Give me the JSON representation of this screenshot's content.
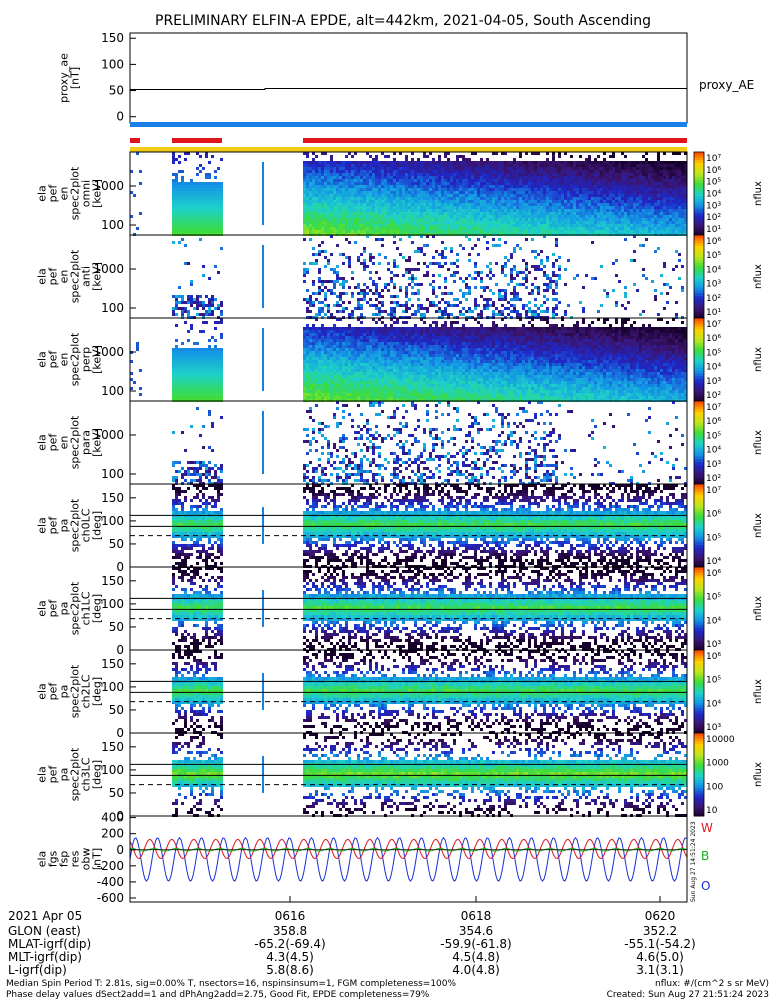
{
  "title": "PRELIMINARY ELFIN-A EPDE, alt=442km, 2021-04-05, South Ascending",
  "colors": {
    "bar_blue": "#1a7fe8",
    "bar_red": "#e0141c",
    "bar_yellow": "#f2cc1a",
    "spec_low": "#4a1a7a",
    "spec_mid": "#1ab8e0",
    "spec_high": "#3ee030",
    "fit_w": "#e0141c",
    "fit_b": "#18b018",
    "fit_o": "#1830d8"
  },
  "panels": {
    "proxy_ae": {
      "ylabel": [
        "proxy_ae",
        "[nT]"
      ],
      "yticks": [
        "150",
        "100",
        "50",
        "0"
      ],
      "ylim": [
        -12,
        160
      ],
      "legend": "proxy_AE",
      "value": 52
    },
    "spectra": [
      {
        "ylabel": [
          "ela",
          "pef",
          "en",
          "spec2plot",
          "omni",
          "[keV]"
        ],
        "yticks": [
          "1000",
          "100"
        ],
        "ctitle": "nflux",
        "cticks": [
          "10⁷",
          "10⁶",
          "10⁵",
          "10⁴",
          "10³",
          "10²",
          "10¹"
        ]
      },
      {
        "ylabel": [
          "ela",
          "pef",
          "en",
          "spec2plot",
          "anti",
          "[keV]"
        ],
        "yticks": [
          "1000",
          "100"
        ],
        "ctitle": "nflux",
        "cticks": [
          "10⁶",
          "10⁵",
          "10⁴",
          "10³",
          "10²",
          "10¹"
        ]
      },
      {
        "ylabel": [
          "ela",
          "pef",
          "en",
          "spec2plot",
          "perp",
          "[keV]"
        ],
        "yticks": [
          "1000",
          "100"
        ],
        "ctitle": "nflux",
        "cticks": [
          "10⁷",
          "10⁶",
          "10⁵",
          "10⁴",
          "10³",
          "10²"
        ]
      },
      {
        "ylabel": [
          "ela",
          "pef",
          "en",
          "spec2plot",
          "para",
          "[keV]"
        ],
        "yticks": [
          "1000",
          "100"
        ],
        "ctitle": "nflux",
        "cticks": [
          "10⁷",
          "10⁶",
          "10⁵",
          "10⁴",
          "10³",
          "10²"
        ]
      }
    ],
    "pitch": [
      {
        "ylabel": [
          "ela",
          "pef",
          "pa",
          "spec2plot",
          "ch0LC",
          "[deg]"
        ],
        "yticks": [
          "150",
          "100",
          "50",
          "0"
        ],
        "ctitle": "nflux",
        "cticks": [
          "10⁷",
          "10⁶",
          "10⁵",
          "10⁴"
        ]
      },
      {
        "ylabel": [
          "ela",
          "pef",
          "pa",
          "spec2plot",
          "ch1LC",
          "[deg]"
        ],
        "yticks": [
          "150",
          "100",
          "50",
          "0"
        ],
        "ctitle": "nflux",
        "cticks": [
          "10⁶",
          "10⁵",
          "10⁴",
          "10³"
        ]
      },
      {
        "ylabel": [
          "ela",
          "pef",
          "pa",
          "spec2plot",
          "ch2LC",
          "[deg]"
        ],
        "yticks": [
          "150",
          "100",
          "50",
          "0"
        ],
        "ctitle": "nflux",
        "cticks": [
          "10⁶",
          "10⁵",
          "10⁴",
          "10³"
        ]
      },
      {
        "ylabel": [
          "ela",
          "pef",
          "pa",
          "spec2plot",
          "ch3LC",
          "[deg]"
        ],
        "yticks": [
          "150",
          "100",
          "50",
          "0"
        ],
        "ctitle": "nflux",
        "cticks": [
          "10000",
          "1000",
          "100",
          "10"
        ]
      }
    ],
    "fgs": {
      "ylabel": [
        "ela",
        "fgs",
        "fsp",
        "res",
        "obw",
        "[nT]"
      ],
      "yticks": [
        "400",
        "200",
        "0",
        "-200",
        "-400",
        "-600"
      ],
      "ylim": [
        -650,
        420
      ],
      "legend": [
        "W",
        "B",
        "O"
      ]
    }
  },
  "xaxis": {
    "row_labels": [
      "2021 Apr 05",
      "GLON (east)",
      "MLAT-igrf(dip)",
      "MLT-igrf(dip)",
      "L-igrf(dip)"
    ],
    "columns": [
      {
        "time": "0616",
        "glon": "358.8",
        "mlat": "-65.2(-69.4)",
        "mlt": "4.3(4.5)",
        "l": "5.8(8.6)"
      },
      {
        "time": "0618",
        "glon": "354.6",
        "mlat": "-59.9(-61.8)",
        "mlt": "4.5(4.8)",
        "l": "4.0(4.8)"
      },
      {
        "time": "0620",
        "glon": "352.2",
        "mlat": "-55.1(-54.2)",
        "mlt": "4.6(5.0)",
        "l": "3.1(3.1)"
      }
    ]
  },
  "footer": {
    "line1": "Median Spin Period T: 2.81s, sig=0.00% T, nsectors=16, nspinsinsum=1, FGM completeness=100%",
    "line2": "Phase delay values dSect2add=1 and dPhAng2add=2.75, Good Fit, EPDE completeness=79%",
    "units": "nflux: #/(cm^2 s sr MeV)",
    "created": "Created: Sun Aug 27 21:51:24 2023",
    "stamp": "Sun Aug 27 14:51:24 2023"
  }
}
